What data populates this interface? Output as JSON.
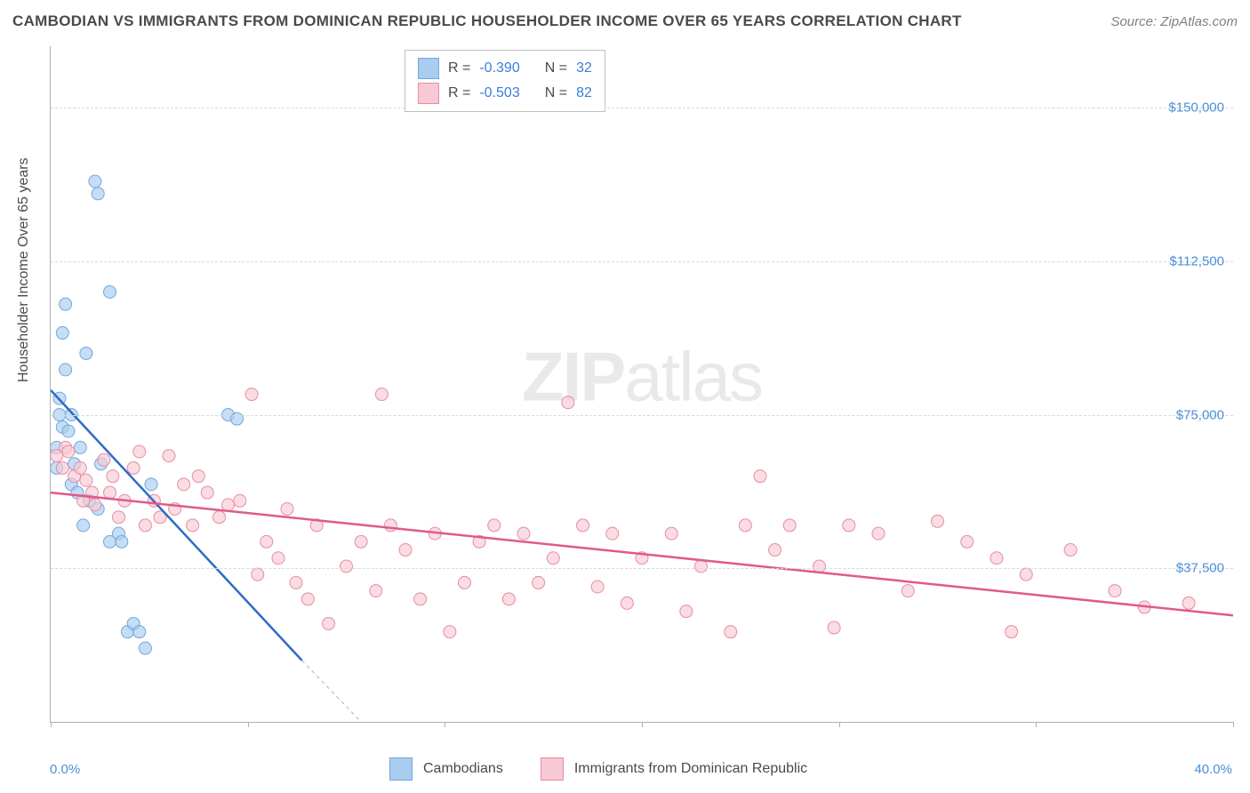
{
  "title": "CAMBODIAN VS IMMIGRANTS FROM DOMINICAN REPUBLIC HOUSEHOLDER INCOME OVER 65 YEARS CORRELATION CHART",
  "source": "Source: ZipAtlas.com",
  "watermark_bold": "ZIP",
  "watermark_light": "atlas",
  "y_axis_title": "Householder Income Over 65 years",
  "chart": {
    "type": "scatter",
    "xlim": [
      0,
      40
    ],
    "ylim": [
      0,
      165000
    ],
    "y_gridlines": [
      37500,
      75000,
      112500,
      150000
    ],
    "y_tick_labels": [
      "$37,500",
      "$75,000",
      "$112,500",
      "$150,000"
    ],
    "x_tick_positions": [
      0,
      6.67,
      13.33,
      20,
      26.67,
      33.33,
      40
    ],
    "x_label_min": "0.0%",
    "x_label_max": "40.0%",
    "background_color": "#ffffff",
    "grid_color": "#d8d8d8"
  },
  "series": [
    {
      "name": "Cambodians",
      "marker_color": "#a8cdf0",
      "marker_border": "#6fa8dc",
      "marker_radius": 7,
      "line_color": "#2e6bc7",
      "line_width": 2.5,
      "R": "-0.390",
      "N": "32",
      "trend": {
        "x1": 0,
        "y1": 81000,
        "x2": 8.5,
        "y2": 15000
      },
      "trend_dash": {
        "x1": 8.5,
        "y1": 15000,
        "x2": 10.5,
        "y2": 0
      },
      "points": [
        [
          0.2,
          67000
        ],
        [
          0.2,
          62000
        ],
        [
          0.3,
          75000
        ],
        [
          0.3,
          79000
        ],
        [
          0.4,
          72000
        ],
        [
          0.4,
          95000
        ],
        [
          0.5,
          102000
        ],
        [
          0.5,
          86000
        ],
        [
          0.6,
          71000
        ],
        [
          0.7,
          75000
        ],
        [
          0.7,
          58000
        ],
        [
          0.8,
          63000
        ],
        [
          0.9,
          56000
        ],
        [
          1.0,
          67000
        ],
        [
          1.1,
          48000
        ],
        [
          1.2,
          90000
        ],
        [
          1.3,
          54000
        ],
        [
          1.5,
          132000
        ],
        [
          1.6,
          129000
        ],
        [
          1.6,
          52000
        ],
        [
          1.7,
          63000
        ],
        [
          2.0,
          105000
        ],
        [
          2.0,
          44000
        ],
        [
          2.3,
          46000
        ],
        [
          2.4,
          44000
        ],
        [
          2.6,
          22000
        ],
        [
          2.8,
          24000
        ],
        [
          3.0,
          22000
        ],
        [
          3.2,
          18000
        ],
        [
          3.4,
          58000
        ],
        [
          6.0,
          75000
        ],
        [
          6.3,
          74000
        ]
      ]
    },
    {
      "name": "Immigrants from Dominican Republic",
      "marker_color": "#f7c9d4",
      "marker_border": "#e88ba3",
      "marker_radius": 7,
      "line_color": "#e05a8a",
      "line_width": 2.5,
      "R": "-0.503",
      "N": "82",
      "trend": {
        "x1": 0,
        "y1": 56000,
        "x2": 40,
        "y2": 26000
      },
      "points": [
        [
          0.2,
          65000
        ],
        [
          0.4,
          62000
        ],
        [
          0.5,
          67000
        ],
        [
          0.6,
          66000
        ],
        [
          0.8,
          60000
        ],
        [
          1.0,
          62000
        ],
        [
          1.1,
          54000
        ],
        [
          1.2,
          59000
        ],
        [
          1.4,
          56000
        ],
        [
          1.5,
          53000
        ],
        [
          1.8,
          64000
        ],
        [
          2.0,
          56000
        ],
        [
          2.1,
          60000
        ],
        [
          2.3,
          50000
        ],
        [
          2.5,
          54000
        ],
        [
          2.8,
          62000
        ],
        [
          3.0,
          66000
        ],
        [
          3.2,
          48000
        ],
        [
          3.5,
          54000
        ],
        [
          3.7,
          50000
        ],
        [
          4.0,
          65000
        ],
        [
          4.2,
          52000
        ],
        [
          4.5,
          58000
        ],
        [
          4.8,
          48000
        ],
        [
          5.0,
          60000
        ],
        [
          5.3,
          56000
        ],
        [
          5.7,
          50000
        ],
        [
          6.0,
          53000
        ],
        [
          6.4,
          54000
        ],
        [
          6.8,
          80000
        ],
        [
          7.0,
          36000
        ],
        [
          7.3,
          44000
        ],
        [
          7.7,
          40000
        ],
        [
          8.0,
          52000
        ],
        [
          8.3,
          34000
        ],
        [
          8.7,
          30000
        ],
        [
          9.0,
          48000
        ],
        [
          9.4,
          24000
        ],
        [
          10.0,
          38000
        ],
        [
          10.5,
          44000
        ],
        [
          11.0,
          32000
        ],
        [
          11.2,
          80000
        ],
        [
          11.5,
          48000
        ],
        [
          12.0,
          42000
        ],
        [
          12.5,
          30000
        ],
        [
          13.0,
          46000
        ],
        [
          13.5,
          22000
        ],
        [
          14.0,
          34000
        ],
        [
          14.5,
          44000
        ],
        [
          15.0,
          48000
        ],
        [
          15.5,
          30000
        ],
        [
          16.0,
          46000
        ],
        [
          16.5,
          34000
        ],
        [
          17.0,
          40000
        ],
        [
          17.5,
          78000
        ],
        [
          18.0,
          48000
        ],
        [
          18.5,
          33000
        ],
        [
          19.0,
          46000
        ],
        [
          19.5,
          29000
        ],
        [
          20.0,
          40000
        ],
        [
          21.0,
          46000
        ],
        [
          21.5,
          27000
        ],
        [
          22.0,
          38000
        ],
        [
          23.0,
          22000
        ],
        [
          23.5,
          48000
        ],
        [
          24.0,
          60000
        ],
        [
          24.5,
          42000
        ],
        [
          25.0,
          48000
        ],
        [
          26.0,
          38000
        ],
        [
          26.5,
          23000
        ],
        [
          27.0,
          48000
        ],
        [
          28.0,
          46000
        ],
        [
          29.0,
          32000
        ],
        [
          30.0,
          49000
        ],
        [
          31.0,
          44000
        ],
        [
          32.0,
          40000
        ],
        [
          32.5,
          22000
        ],
        [
          33.0,
          36000
        ],
        [
          34.5,
          42000
        ],
        [
          36.0,
          32000
        ],
        [
          37.0,
          28000
        ],
        [
          38.5,
          29000
        ]
      ]
    }
  ],
  "legend_top": {
    "r_label": "R =",
    "n_label": "N ="
  },
  "legend_bottom": {
    "items": [
      "Cambodians",
      "Immigrants from Dominican Republic"
    ]
  }
}
